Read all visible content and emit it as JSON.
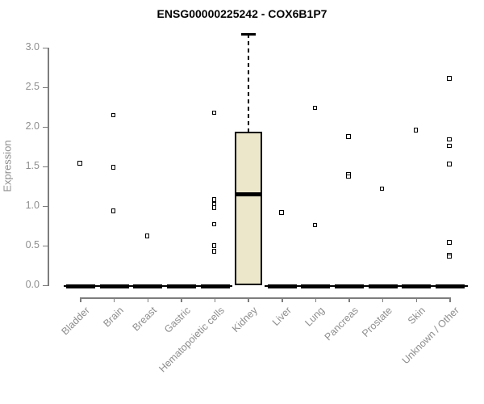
{
  "chart_data": {
    "type": "boxplot",
    "title": "ENSG00000225242 - COX6B1P7",
    "ylabel": "Expression",
    "ylim": [
      0.0,
      3.0
    ],
    "yticks": [
      0.0,
      0.5,
      1.0,
      1.5,
      2.0,
      2.5,
      3.0
    ],
    "grid": "off",
    "legend": "none",
    "categories": [
      "Bladder",
      "Brain",
      "Breast",
      "Gastric",
      "Hematopoietic cells",
      "Kidney",
      "Liver",
      "Lung",
      "Pancreas",
      "Prostate",
      "Skin",
      "Unknown / Other"
    ],
    "series": [
      {
        "category": "Bladder",
        "box": {
          "whisker_low": 0.0,
          "q1": 0.0,
          "median": 0.0,
          "q3": 0.0,
          "whisker_high": 0.0
        },
        "points": [
          1.54
        ]
      },
      {
        "category": "Brain",
        "box": {
          "whisker_low": 0.0,
          "q1": 0.0,
          "median": 0.0,
          "q3": 0.0,
          "whisker_high": 0.0
        },
        "points": [
          2.15,
          1.49,
          0.94
        ]
      },
      {
        "category": "Breast",
        "box": {
          "whisker_low": 0.0,
          "q1": 0.0,
          "median": 0.0,
          "q3": 0.0,
          "whisker_high": 0.0
        },
        "points": [
          0.62
        ]
      },
      {
        "category": "Gastric",
        "box": {
          "whisker_low": 0.0,
          "q1": 0.0,
          "median": 0.0,
          "q3": 0.0,
          "whisker_high": 0.0
        },
        "points": []
      },
      {
        "category": "Hematopoietic cells",
        "box": {
          "whisker_low": 0.0,
          "q1": 0.0,
          "median": 0.0,
          "q3": 0.0,
          "whisker_high": 0.0
        },
        "points": [
          2.18,
          1.08,
          1.02,
          0.98,
          0.77,
          0.5,
          0.43
        ]
      },
      {
        "category": "Kidney",
        "box": {
          "whisker_low": 0.0,
          "q1": 0.0,
          "median": 1.15,
          "q3": 1.94,
          "whisker_high": 3.17
        },
        "points": []
      },
      {
        "category": "Liver",
        "box": {
          "whisker_low": 0.0,
          "q1": 0.0,
          "median": 0.0,
          "q3": 0.0,
          "whisker_high": 0.0
        },
        "points": [
          0.92
        ]
      },
      {
        "category": "Lung",
        "box": {
          "whisker_low": 0.0,
          "q1": 0.0,
          "median": 0.0,
          "q3": 0.0,
          "whisker_high": 0.0
        },
        "points": [
          2.24,
          0.76
        ]
      },
      {
        "category": "Pancreas",
        "box": {
          "whisker_low": 0.0,
          "q1": 0.0,
          "median": 0.0,
          "q3": 0.0,
          "whisker_high": 0.0
        },
        "points": [
          1.88,
          1.4,
          1.37
        ]
      },
      {
        "category": "Prostate",
        "box": {
          "whisker_low": 0.0,
          "q1": 0.0,
          "median": 0.0,
          "q3": 0.0,
          "whisker_high": 0.0
        },
        "points": [
          1.22
        ]
      },
      {
        "category": "Skin",
        "box": {
          "whisker_low": 0.0,
          "q1": 0.0,
          "median": 0.0,
          "q3": 0.0,
          "whisker_high": 0.0
        },
        "points": [
          1.96
        ]
      },
      {
        "category": "Unknown / Other",
        "box": {
          "whisker_low": 0.0,
          "q1": 0.0,
          "median": 0.0,
          "q3": 0.0,
          "whisker_high": 0.0
        },
        "points": [
          2.61,
          1.84,
          1.76,
          1.53,
          0.54,
          0.38,
          0.36
        ]
      }
    ],
    "colors": {
      "box_fill": "#ece7cb",
      "box_border": "#000000",
      "axis": "#7d7d7d",
      "tick_label": "#8e8e8e",
      "title": "#000000"
    }
  }
}
